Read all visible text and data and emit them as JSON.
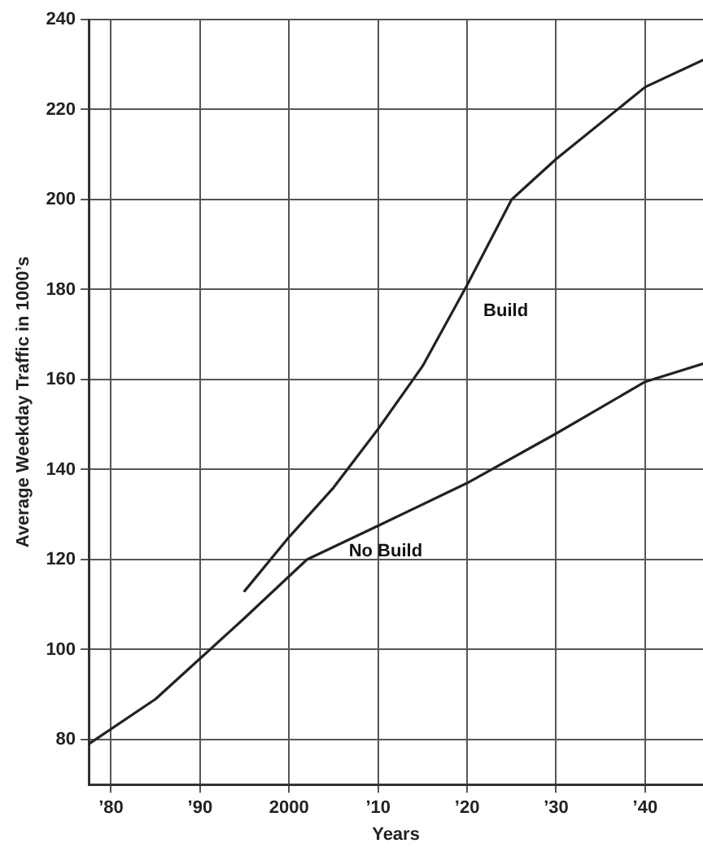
{
  "chart_data": {
    "type": "line",
    "xlabel": "Years",
    "ylabel": "Average Weekday Traffic in 1000’s",
    "xlim": [
      1977.5,
      2046.5
    ],
    "xticks": [
      {
        "value": 1980,
        "label": "’80"
      },
      {
        "value": 1990,
        "label": "’90"
      },
      {
        "value": 2000,
        "label": "2000"
      },
      {
        "value": 2010,
        "label": "’10"
      },
      {
        "value": 2020,
        "label": "’20"
      },
      {
        "value": 2030,
        "label": "’30"
      },
      {
        "value": 2040,
        "label": "’40"
      }
    ],
    "ylim": [
      70,
      240
    ],
    "yticks": [
      80,
      100,
      120,
      140,
      160,
      180,
      200,
      220,
      240
    ],
    "grid": true,
    "legend": false,
    "marker": "none",
    "line_style": "solid",
    "series": [
      {
        "name": "Build",
        "color": "#222222",
        "x": [
          1995,
          2000,
          2005,
          2010,
          2015,
          2020,
          2025,
          2030,
          2040,
          2046.5
        ],
        "values": [
          113,
          125,
          136,
          149,
          163,
          181,
          200,
          209,
          225,
          231
        ]
      },
      {
        "name": "No Build",
        "color": "#222222",
        "x": [
          1977.5,
          1985,
          1990,
          1995,
          2002,
          2010,
          2020,
          2030,
          2040,
          2046.5
        ],
        "values": [
          79,
          89,
          98,
          107,
          120,
          127.5,
          137,
          148,
          159.5,
          163.5
        ]
      }
    ]
  }
}
